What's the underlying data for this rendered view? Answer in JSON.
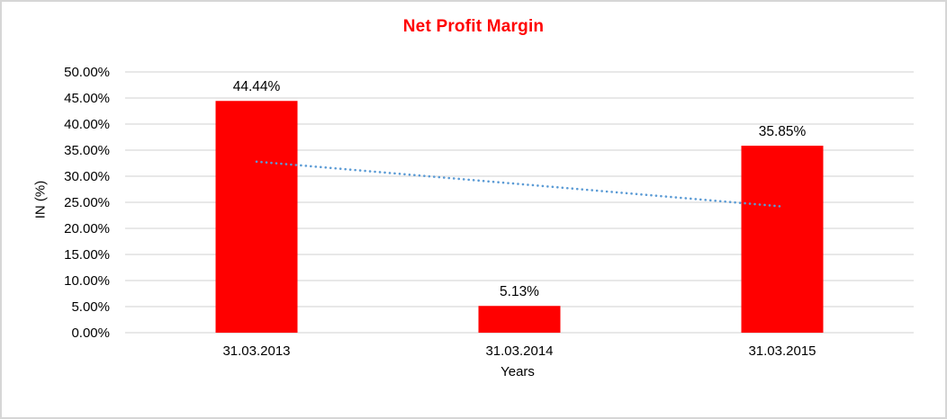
{
  "chart_data": {
    "type": "bar",
    "title": "Net Profit Margin",
    "xlabel": "Years",
    "ylabel": "IN (%)",
    "categories": [
      "31.03.2013",
      "31.03.2014",
      "31.03.2015"
    ],
    "values": [
      44.44,
      5.13,
      35.85
    ],
    "data_labels": [
      "44.44%",
      "5.13%",
      "35.85%"
    ],
    "ylim": [
      0,
      50
    ],
    "ytick_step": 5,
    "ytick_labels": [
      "0.00%",
      "5.00%",
      "10.00%",
      "15.00%",
      "20.00%",
      "25.00%",
      "30.00%",
      "35.00%",
      "40.00%",
      "45.00%",
      "50.00%"
    ],
    "grid": true,
    "legend": "none",
    "trendline": {
      "kind": "linear",
      "style": "dotted",
      "start_value": 32.8,
      "end_value": 24.2,
      "color": "#5b9bd5"
    },
    "colors": {
      "bar": "#ff0000",
      "title": "#ff0000",
      "text": "#000000",
      "gridline": "#d9d9d9"
    }
  }
}
